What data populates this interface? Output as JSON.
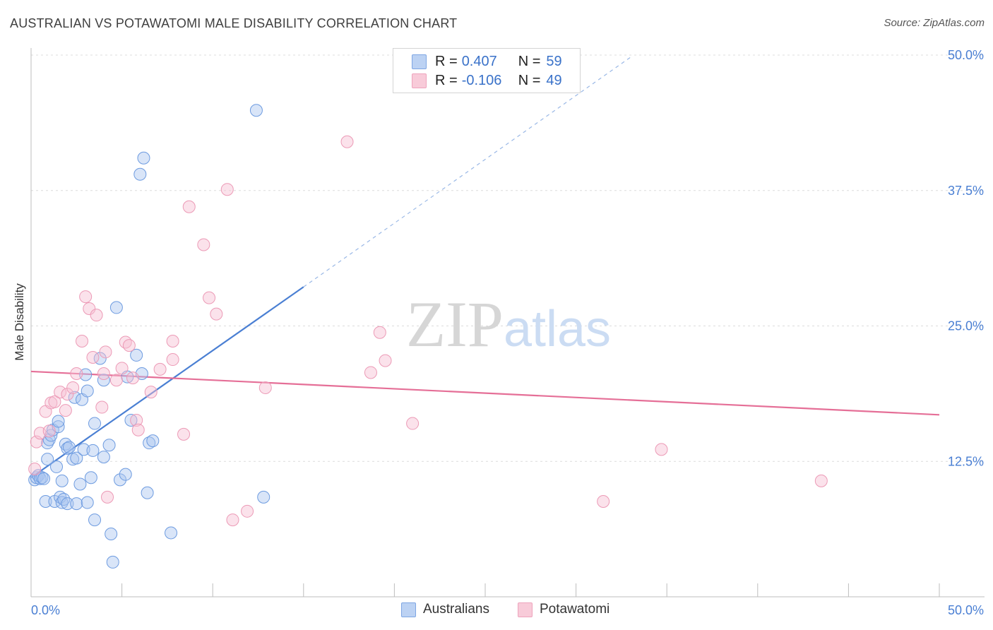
{
  "chart_data": {
    "type": "scatter",
    "title": "AUSTRALIAN VS POTAWATOMI MALE DISABILITY CORRELATION CHART",
    "source": "Source: ZipAtlas.com",
    "xlabel": "",
    "ylabel": "Male Disability",
    "xlim": [
      0,
      50
    ],
    "ylim": [
      0,
      50
    ],
    "y_ticks": [
      12.5,
      25.0,
      37.5,
      50.0
    ],
    "y_tick_labels": [
      "12.5%",
      "25.0%",
      "37.5%",
      "50.0%"
    ],
    "x_tick_labels": [
      "0.0%",
      "50.0%"
    ],
    "grid": true,
    "watermark": "ZIPatlas",
    "colors": {
      "Australians": "#4a7fd3",
      "Potawatomi": "#e56f97"
    },
    "legend": [
      {
        "name": "Australians",
        "r_label": "R =",
        "r_value": "0.407",
        "n_label": "N =",
        "n_value": "59"
      },
      {
        "name": "Potawatomi",
        "r_label": "R =",
        "r_value": "-0.106",
        "n_label": "N =",
        "n_value": "49"
      }
    ],
    "series": [
      {
        "name": "Australians",
        "trend": {
          "x0": 0.0,
          "y0": 11.0,
          "x1": 15.0,
          "y1": 28.6,
          "dash_to_x": 33.0,
          "dash_to_y": 49.8
        },
        "points": [
          [
            0.2,
            10.8
          ],
          [
            0.3,
            11.0
          ],
          [
            0.4,
            11.2
          ],
          [
            0.5,
            10.9
          ],
          [
            0.6,
            11.0
          ],
          [
            0.7,
            10.9
          ],
          [
            0.8,
            8.8
          ],
          [
            0.9,
            12.7
          ],
          [
            0.9,
            14.2
          ],
          [
            1.0,
            14.5
          ],
          [
            1.1,
            14.9
          ],
          [
            1.2,
            15.4
          ],
          [
            1.3,
            8.8
          ],
          [
            1.4,
            12.0
          ],
          [
            1.5,
            15.7
          ],
          [
            1.5,
            16.2
          ],
          [
            1.6,
            9.2
          ],
          [
            1.7,
            8.7
          ],
          [
            1.7,
            10.7
          ],
          [
            1.8,
            9.0
          ],
          [
            1.9,
            14.1
          ],
          [
            2.0,
            13.7
          ],
          [
            2.0,
            8.6
          ],
          [
            2.1,
            13.8
          ],
          [
            2.3,
            12.7
          ],
          [
            2.4,
            18.4
          ],
          [
            2.5,
            12.8
          ],
          [
            2.5,
            8.6
          ],
          [
            2.7,
            10.4
          ],
          [
            2.8,
            18.2
          ],
          [
            2.9,
            13.6
          ],
          [
            3.0,
            20.5
          ],
          [
            3.1,
            8.7
          ],
          [
            3.1,
            19.0
          ],
          [
            3.3,
            11.0
          ],
          [
            3.4,
            13.5
          ],
          [
            3.5,
            16.0
          ],
          [
            3.5,
            7.1
          ],
          [
            3.8,
            22.0
          ],
          [
            4.0,
            12.9
          ],
          [
            4.0,
            20.0
          ],
          [
            4.3,
            14.0
          ],
          [
            4.4,
            5.8
          ],
          [
            4.5,
            3.2
          ],
          [
            4.7,
            26.7
          ],
          [
            4.9,
            10.8
          ],
          [
            5.2,
            11.3
          ],
          [
            5.3,
            20.3
          ],
          [
            5.5,
            16.3
          ],
          [
            5.8,
            22.3
          ],
          [
            6.0,
            39.0
          ],
          [
            6.1,
            20.6
          ],
          [
            6.2,
            40.5
          ],
          [
            6.4,
            9.6
          ],
          [
            6.5,
            14.2
          ],
          [
            6.7,
            14.4
          ],
          [
            7.7,
            5.9
          ],
          [
            12.4,
            44.9
          ],
          [
            12.8,
            9.2
          ]
        ]
      },
      {
        "name": "Potawatomi",
        "trend": {
          "x0": 0.0,
          "y0": 20.8,
          "x1": 50.0,
          "y1": 16.8
        },
        "points": [
          [
            0.2,
            11.8
          ],
          [
            0.3,
            14.3
          ],
          [
            0.5,
            15.1
          ],
          [
            0.8,
            17.1
          ],
          [
            1.0,
            15.3
          ],
          [
            1.1,
            17.9
          ],
          [
            1.3,
            18.0
          ],
          [
            1.6,
            18.9
          ],
          [
            1.9,
            17.2
          ],
          [
            2.0,
            18.7
          ],
          [
            2.3,
            19.3
          ],
          [
            2.5,
            20.6
          ],
          [
            2.8,
            23.6
          ],
          [
            3.0,
            27.7
          ],
          [
            3.2,
            26.6
          ],
          [
            3.4,
            22.1
          ],
          [
            3.6,
            26.0
          ],
          [
            3.9,
            17.5
          ],
          [
            4.1,
            22.6
          ],
          [
            4.2,
            9.2
          ],
          [
            4.7,
            20.0
          ],
          [
            5.0,
            21.1
          ],
          [
            5.2,
            23.5
          ],
          [
            5.4,
            23.2
          ],
          [
            5.8,
            16.3
          ],
          [
            5.9,
            15.4
          ],
          [
            6.6,
            18.9
          ],
          [
            7.1,
            21.0
          ],
          [
            7.8,
            21.9
          ],
          [
            7.8,
            23.6
          ],
          [
            8.4,
            15.0
          ],
          [
            8.7,
            36.0
          ],
          [
            9.5,
            32.5
          ],
          [
            9.8,
            27.6
          ],
          [
            10.2,
            26.1
          ],
          [
            10.8,
            37.6
          ],
          [
            11.1,
            7.1
          ],
          [
            11.9,
            7.9
          ],
          [
            12.9,
            19.3
          ],
          [
            17.4,
            42.0
          ],
          [
            18.7,
            20.7
          ],
          [
            19.2,
            24.4
          ],
          [
            19.5,
            21.8
          ],
          [
            21.0,
            16.0
          ],
          [
            31.5,
            8.8
          ],
          [
            34.7,
            13.6
          ],
          [
            43.5,
            10.7
          ],
          [
            4.0,
            20.6
          ],
          [
            5.6,
            20.2
          ]
        ]
      }
    ]
  }
}
